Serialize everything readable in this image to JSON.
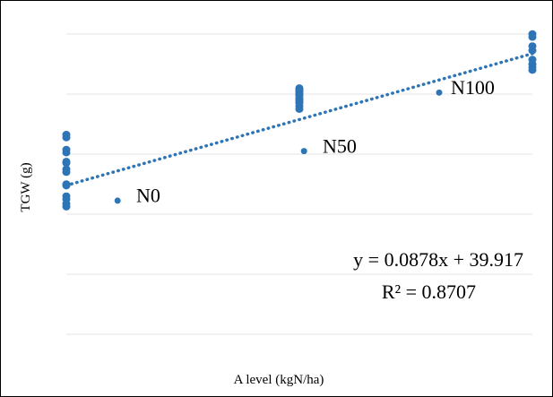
{
  "chart_data": {
    "type": "scatter",
    "title": "",
    "xlabel": "A level (kgN/ha)",
    "ylabel": "TGW (g)",
    "xlim": [
      0,
      100
    ],
    "ylim": [
      30,
      50
    ],
    "grid": true,
    "legend": "none",
    "series": [
      {
        "color": "#2E75B6",
        "points": [
          {
            "x": 0,
            "y": 43.3
          },
          {
            "x": 0,
            "y": 43.1
          },
          {
            "x": 0,
            "y": 42.3
          },
          {
            "x": 0,
            "y": 42.1
          },
          {
            "x": 0,
            "y": 41.5
          },
          {
            "x": 0,
            "y": 41.4
          },
          {
            "x": 0,
            "y": 41.0
          },
          {
            "x": 0,
            "y": 40.8
          },
          {
            "x": 0,
            "y": 40.0
          },
          {
            "x": 0,
            "y": 39.9
          },
          {
            "x": 0,
            "y": 39.2
          },
          {
            "x": 0,
            "y": 39.0
          },
          {
            "x": 0,
            "y": 38.7
          },
          {
            "x": 0,
            "y": 38.5
          },
          {
            "x": 50,
            "y": 46.4
          },
          {
            "x": 50,
            "y": 46.3
          },
          {
            "x": 50,
            "y": 46.2
          },
          {
            "x": 50,
            "y": 46.1
          },
          {
            "x": 50,
            "y": 46.0
          },
          {
            "x": 50,
            "y": 45.9
          },
          {
            "x": 50,
            "y": 45.7
          },
          {
            "x": 50,
            "y": 45.6
          },
          {
            "x": 50,
            "y": 45.5
          },
          {
            "x": 50,
            "y": 45.4
          },
          {
            "x": 50,
            "y": 45.2
          },
          {
            "x": 50,
            "y": 45.0
          },
          {
            "x": 100,
            "y": 50.0
          },
          {
            "x": 100,
            "y": 49.8
          },
          {
            "x": 100,
            "y": 49.2
          },
          {
            "x": 100,
            "y": 48.9
          },
          {
            "x": 100,
            "y": 48.3
          },
          {
            "x": 100,
            "y": 48.0
          },
          {
            "x": 100,
            "y": 47.8
          },
          {
            "x": 100,
            "y": 47.6
          }
        ]
      }
    ],
    "trendline": {
      "type": "linear",
      "slope": 0.0878,
      "intercept": 39.917,
      "style": "dotted",
      "color": "#2E75B6"
    },
    "annotations": [
      {
        "text": "N0",
        "x": 15,
        "y": 38.8,
        "marker_x": 11,
        "marker_y": 38.9
      },
      {
        "text": "N50",
        "x": 55,
        "y": 42.1,
        "marker_x": 51,
        "marker_y": 42.2
      },
      {
        "text": "N100",
        "x": 82.5,
        "y": 46.0,
        "marker_x": 80,
        "marker_y": 46.1
      }
    ],
    "equation": "y = 0.0878x + 39.917",
    "r_squared": "R² = 0.8707"
  }
}
